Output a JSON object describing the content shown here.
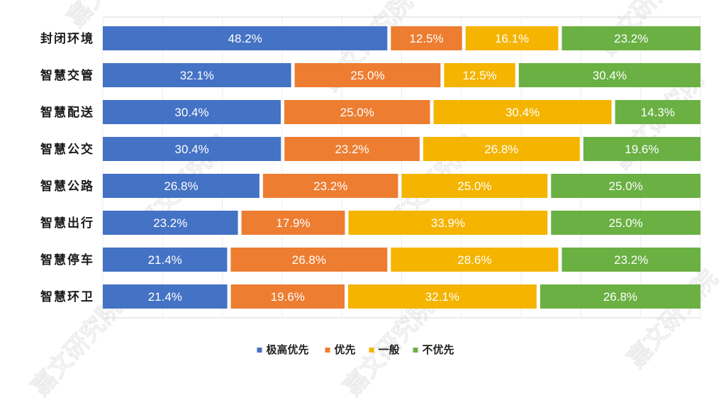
{
  "chart_data": {
    "type": "bar",
    "orientation": "horizontal",
    "stacked": true,
    "percent_stacked": true,
    "categories": [
      "封闭环境",
      "智慧交管",
      "智慧配送",
      "智慧公交",
      "智慧公路",
      "智慧出行",
      "智慧停车",
      "智慧环卫"
    ],
    "series": [
      {
        "name": "极高优先",
        "color": "#4472C4",
        "values": [
          48.2,
          32.1,
          30.4,
          30.4,
          26.8,
          23.2,
          21.4,
          21.4
        ]
      },
      {
        "name": "优先",
        "color": "#ED7D31",
        "values": [
          12.5,
          25.0,
          25.0,
          23.2,
          23.2,
          17.9,
          26.8,
          19.6
        ]
      },
      {
        "name": "一般",
        "color": "#F4B400",
        "values": [
          16.1,
          12.5,
          30.4,
          26.8,
          25.0,
          33.9,
          28.6,
          32.1
        ]
      },
      {
        "name": "不优先",
        "color": "#6AB043",
        "values": [
          23.2,
          30.4,
          14.3,
          19.6,
          25.0,
          25.0,
          23.2,
          26.8
        ]
      }
    ],
    "data_labels": [
      [
        "48.2%",
        "12.5%",
        "16.1%",
        "23.2%"
      ],
      [
        "32.1%",
        "25.0%",
        "12.5%",
        "30.4%"
      ],
      [
        "30.4%",
        "25.0%",
        "30.4%",
        "14.3%"
      ],
      [
        "30.4%",
        "23.2%",
        "26.8%",
        "19.6%"
      ],
      [
        "26.8%",
        "23.2%",
        "25.0%",
        "25.0%"
      ],
      [
        "23.2%",
        "17.9%",
        "33.9%",
        "25.0%"
      ],
      [
        "21.4%",
        "26.8%",
        "28.6%",
        "23.2%"
      ],
      [
        "21.4%",
        "19.6%",
        "32.1%",
        "26.8%"
      ]
    ],
    "xlim": [
      0,
      100
    ],
    "grid": true,
    "legend": {
      "position": "bottom"
    },
    "title": "",
    "xlabel": "",
    "ylabel": ""
  },
  "watermark": {
    "text": "嘉文研究院"
  }
}
